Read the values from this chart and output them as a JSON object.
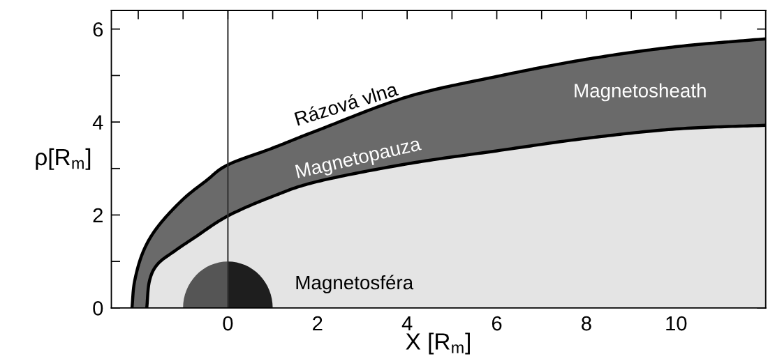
{
  "chart_data": {
    "type": "area",
    "xlabel": "X [R$_{m}$]",
    "ylabel": "ρ[R$_{m}$]",
    "xlim": [
      -2.6,
      12
    ],
    "ylim": [
      0,
      6.4
    ],
    "xticks": [
      {
        "value": -2,
        "label": null
      },
      {
        "value": -1,
        "label": null
      },
      0,
      {
        "value": 1,
        "label": null
      },
      2,
      {
        "value": 3,
        "label": null
      },
      4,
      {
        "value": 5,
        "label": null
      },
      6,
      {
        "value": 7,
        "label": null
      },
      8,
      {
        "value": 9,
        "label": null
      },
      10,
      {
        "value": 11,
        "label": null
      }
    ],
    "yticks": [
      0,
      {
        "value": 1,
        "label": null
      },
      2,
      {
        "value": 3,
        "label": null
      },
      4,
      {
        "value": 5,
        "label": null
      },
      6
    ],
    "grid": false,
    "series": [
      {
        "color": "#6a6a6a",
        "x": [
          -2.14,
          -2.08,
          -1.89,
          -1.57,
          -1.02,
          -0.48,
          0,
          1,
          2,
          4,
          6,
          8,
          10,
          12
        ],
        "values": [
          0,
          0.58,
          1.21,
          1.74,
          2.32,
          2.74,
          3.08,
          3.44,
          3.82,
          4.54,
          4.98,
          5.35,
          5.62,
          5.79
        ]
      },
      {
        "color": "#e4e4e4",
        "x": [
          -1.81,
          -1.75,
          -1.57,
          -1.18,
          -0.75,
          0,
          1,
          2,
          4,
          6,
          8,
          10,
          12
        ],
        "values": [
          0,
          0.58,
          0.94,
          1.23,
          1.51,
          1.98,
          2.4,
          2.72,
          3.1,
          3.38,
          3.65,
          3.85,
          3.93
        ]
      }
    ],
    "ref_lines": [
      {
        "axis": "x",
        "value": 0,
        "color": "#333333"
      }
    ],
    "annotations": [
      "Rázová vlna",
      "Magnetopauza",
      "Magnetosheath",
      "Magnetosféra"
    ]
  }
}
